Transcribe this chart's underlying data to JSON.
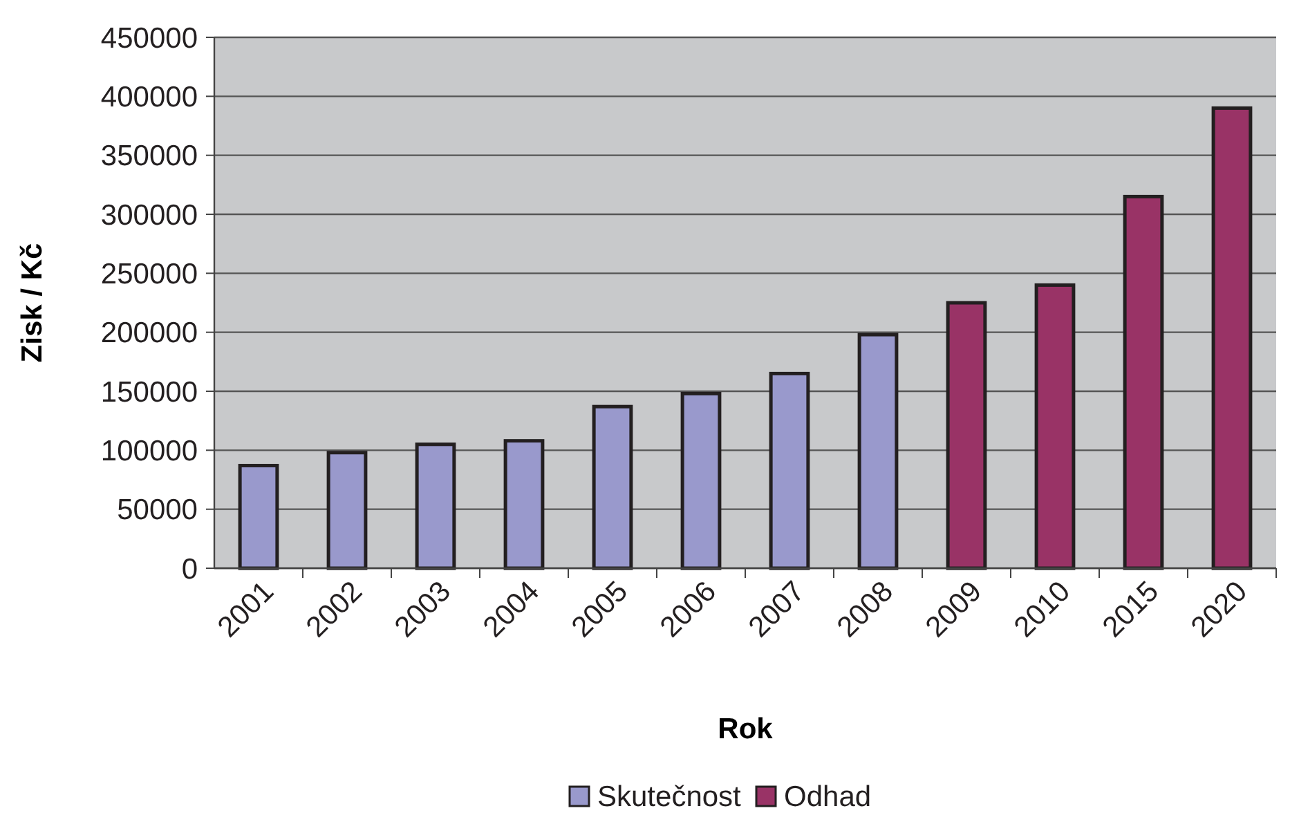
{
  "chart_data": {
    "type": "bar",
    "xlabel": "Rok",
    "ylabel": "Zisk / Kč",
    "categories": [
      "2001",
      "2002",
      "2003",
      "2004",
      "2005",
      "2006",
      "2007",
      "2008",
      "2009",
      "2010",
      "2015",
      "2020"
    ],
    "series": [
      {
        "name": "Skutečnost",
        "color": "#9999cc",
        "values": [
          87000,
          98000,
          105000,
          108000,
          137000,
          148000,
          165000,
          198000,
          null,
          null,
          null,
          null
        ]
      },
      {
        "name": "Odhad",
        "color": "#993366",
        "values": [
          null,
          null,
          null,
          null,
          null,
          null,
          null,
          null,
          225000,
          240000,
          315000,
          390000
        ]
      }
    ],
    "ylim": [
      0,
      450000
    ],
    "yticks": [
      0,
      50000,
      100000,
      150000,
      200000,
      250000,
      300000,
      350000,
      400000,
      450000
    ],
    "grid": "y",
    "legend": "bottom"
  }
}
